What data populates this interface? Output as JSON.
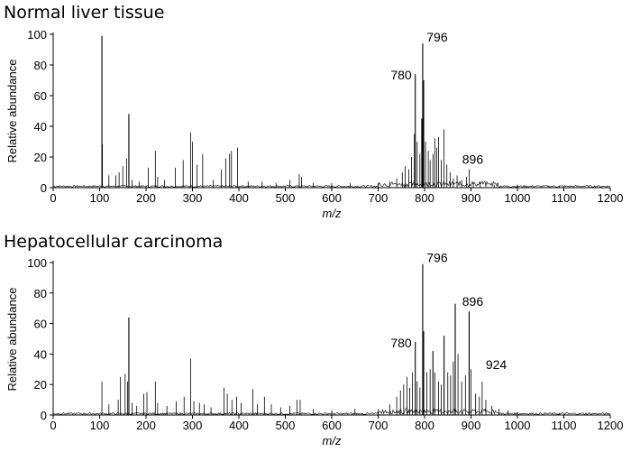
{
  "chart_data": [
    {
      "type": "line",
      "title": "Normal liver tissue",
      "xlabel": "m/z",
      "ylabel": "Relative abundance",
      "xlim": [
        0,
        1200
      ],
      "ylim": [
        0,
        100
      ],
      "xticks": [
        "0",
        "100",
        "200",
        "300",
        "400",
        "500",
        "600",
        "700",
        "800",
        "900",
        "1000",
        "1100",
        "1200"
      ],
      "yticks": [
        "0",
        "20",
        "40",
        "60",
        "80",
        "100"
      ],
      "peaks": [
        {
          "x": 105,
          "y": 99
        },
        {
          "x": 106,
          "y": 28
        },
        {
          "x": 120,
          "y": 8
        },
        {
          "x": 135,
          "y": 8
        },
        {
          "x": 142,
          "y": 10
        },
        {
          "x": 150,
          "y": 14
        },
        {
          "x": 158,
          "y": 19
        },
        {
          "x": 163,
          "y": 48
        },
        {
          "x": 170,
          "y": 5
        },
        {
          "x": 185,
          "y": 4
        },
        {
          "x": 205,
          "y": 13
        },
        {
          "x": 220,
          "y": 24
        },
        {
          "x": 225,
          "y": 7
        },
        {
          "x": 240,
          "y": 5
        },
        {
          "x": 263,
          "y": 13
        },
        {
          "x": 280,
          "y": 18
        },
        {
          "x": 296,
          "y": 36
        },
        {
          "x": 300,
          "y": 30
        },
        {
          "x": 310,
          "y": 15
        },
        {
          "x": 322,
          "y": 22
        },
        {
          "x": 345,
          "y": 5
        },
        {
          "x": 362,
          "y": 12
        },
        {
          "x": 372,
          "y": 19
        },
        {
          "x": 380,
          "y": 22
        },
        {
          "x": 384,
          "y": 24
        },
        {
          "x": 397,
          "y": 26
        },
        {
          "x": 420,
          "y": 4
        },
        {
          "x": 450,
          "y": 4
        },
        {
          "x": 480,
          "y": 3
        },
        {
          "x": 510,
          "y": 5
        },
        {
          "x": 530,
          "y": 9
        },
        {
          "x": 535,
          "y": 7
        },
        {
          "x": 560,
          "y": 3
        },
        {
          "x": 600,
          "y": 3
        },
        {
          "x": 640,
          "y": 3
        },
        {
          "x": 700,
          "y": 3
        },
        {
          "x": 725,
          "y": 4
        },
        {
          "x": 740,
          "y": 6
        },
        {
          "x": 752,
          "y": 10
        },
        {
          "x": 758,
          "y": 14
        },
        {
          "x": 766,
          "y": 12
        },
        {
          "x": 772,
          "y": 20
        },
        {
          "x": 778,
          "y": 35
        },
        {
          "x": 780,
          "y": 74
        },
        {
          "x": 784,
          "y": 30
        },
        {
          "x": 790,
          "y": 22
        },
        {
          "x": 794,
          "y": 45
        },
        {
          "x": 796,
          "y": 94
        },
        {
          "x": 798,
          "y": 70
        },
        {
          "x": 802,
          "y": 30
        },
        {
          "x": 808,
          "y": 24
        },
        {
          "x": 812,
          "y": 18
        },
        {
          "x": 818,
          "y": 22
        },
        {
          "x": 822,
          "y": 32
        },
        {
          "x": 826,
          "y": 26
        },
        {
          "x": 830,
          "y": 33
        },
        {
          "x": 836,
          "y": 18
        },
        {
          "x": 842,
          "y": 38
        },
        {
          "x": 848,
          "y": 15
        },
        {
          "x": 855,
          "y": 10
        },
        {
          "x": 862,
          "y": 6
        },
        {
          "x": 870,
          "y": 8
        },
        {
          "x": 880,
          "y": 5
        },
        {
          "x": 890,
          "y": 7
        },
        {
          "x": 896,
          "y": 12
        },
        {
          "x": 905,
          "y": 4
        },
        {
          "x": 920,
          "y": 4
        },
        {
          "x": 950,
          "y": 2
        },
        {
          "x": 1000,
          "y": 2
        },
        {
          "x": 1090,
          "y": 1
        }
      ],
      "annotations": [
        {
          "text": "780",
          "x": 780,
          "y": 74
        },
        {
          "text": "796",
          "x": 796,
          "y": 94
        },
        {
          "text": "896",
          "x": 896,
          "y": 12
        }
      ]
    },
    {
      "type": "line",
      "title": "Hepatocellular carcinoma",
      "xlabel": "m/z",
      "ylabel": "Relative abundance",
      "xlim": [
        0,
        1200
      ],
      "ylim": [
        0,
        100
      ],
      "xticks": [
        "0",
        "100",
        "200",
        "300",
        "400",
        "500",
        "600",
        "700",
        "800",
        "900",
        "1000",
        "1100",
        "1200"
      ],
      "yticks": [
        "0",
        "20",
        "40",
        "60",
        "80",
        "100"
      ],
      "peaks": [
        {
          "x": 105,
          "y": 22
        },
        {
          "x": 120,
          "y": 7
        },
        {
          "x": 140,
          "y": 10
        },
        {
          "x": 145,
          "y": 25
        },
        {
          "x": 155,
          "y": 27
        },
        {
          "x": 160,
          "y": 22
        },
        {
          "x": 163,
          "y": 64
        },
        {
          "x": 170,
          "y": 8
        },
        {
          "x": 180,
          "y": 6
        },
        {
          "x": 195,
          "y": 14
        },
        {
          "x": 202,
          "y": 15
        },
        {
          "x": 220,
          "y": 22
        },
        {
          "x": 225,
          "y": 8
        },
        {
          "x": 245,
          "y": 6
        },
        {
          "x": 265,
          "y": 9
        },
        {
          "x": 282,
          "y": 12
        },
        {
          "x": 296,
          "y": 37
        },
        {
          "x": 303,
          "y": 9
        },
        {
          "x": 315,
          "y": 8
        },
        {
          "x": 325,
          "y": 7
        },
        {
          "x": 340,
          "y": 5
        },
        {
          "x": 368,
          "y": 18
        },
        {
          "x": 375,
          "y": 14
        },
        {
          "x": 385,
          "y": 10
        },
        {
          "x": 395,
          "y": 12
        },
        {
          "x": 405,
          "y": 8
        },
        {
          "x": 430,
          "y": 17
        },
        {
          "x": 440,
          "y": 7
        },
        {
          "x": 455,
          "y": 12
        },
        {
          "x": 470,
          "y": 7
        },
        {
          "x": 490,
          "y": 5
        },
        {
          "x": 510,
          "y": 6
        },
        {
          "x": 525,
          "y": 10
        },
        {
          "x": 532,
          "y": 10
        },
        {
          "x": 560,
          "y": 4
        },
        {
          "x": 600,
          "y": 3
        },
        {
          "x": 650,
          "y": 4
        },
        {
          "x": 700,
          "y": 4
        },
        {
          "x": 725,
          "y": 7
        },
        {
          "x": 740,
          "y": 12
        },
        {
          "x": 748,
          "y": 16
        },
        {
          "x": 755,
          "y": 20
        },
        {
          "x": 762,
          "y": 25
        },
        {
          "x": 768,
          "y": 18
        },
        {
          "x": 774,
          "y": 28
        },
        {
          "x": 780,
          "y": 48
        },
        {
          "x": 784,
          "y": 22
        },
        {
          "x": 790,
          "y": 18
        },
        {
          "x": 796,
          "y": 99
        },
        {
          "x": 798,
          "y": 55
        },
        {
          "x": 805,
          "y": 28
        },
        {
          "x": 812,
          "y": 30
        },
        {
          "x": 818,
          "y": 42
        },
        {
          "x": 822,
          "y": 28
        },
        {
          "x": 830,
          "y": 22
        },
        {
          "x": 836,
          "y": 20
        },
        {
          "x": 842,
          "y": 52
        },
        {
          "x": 850,
          "y": 28
        },
        {
          "x": 856,
          "y": 26
        },
        {
          "x": 862,
          "y": 35
        },
        {
          "x": 866,
          "y": 73
        },
        {
          "x": 872,
          "y": 40
        },
        {
          "x": 880,
          "y": 22
        },
        {
          "x": 888,
          "y": 26
        },
        {
          "x": 896,
          "y": 68
        },
        {
          "x": 900,
          "y": 30
        },
        {
          "x": 910,
          "y": 14
        },
        {
          "x": 918,
          "y": 12
        },
        {
          "x": 924,
          "y": 22
        },
        {
          "x": 932,
          "y": 10
        },
        {
          "x": 945,
          "y": 6
        },
        {
          "x": 960,
          "y": 4
        },
        {
          "x": 980,
          "y": 3
        },
        {
          "x": 1000,
          "y": 2
        },
        {
          "x": 1090,
          "y": 1
        }
      ],
      "annotations": [
        {
          "text": "780",
          "x": 780,
          "y": 48
        },
        {
          "text": "796",
          "x": 796,
          "y": 99
        },
        {
          "text": "896",
          "x": 896,
          "y": 68
        },
        {
          "text": "924",
          "x": 924,
          "y": 22
        }
      ]
    }
  ]
}
